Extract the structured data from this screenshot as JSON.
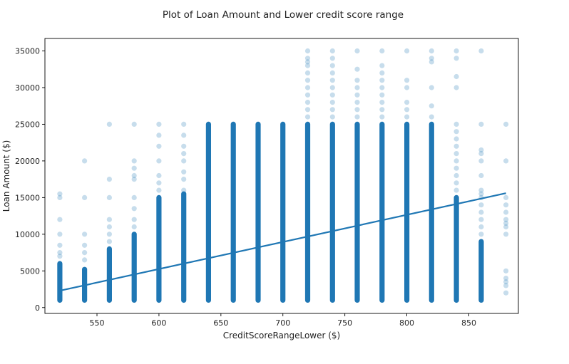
{
  "chart_data": {
    "type": "scatter",
    "title": "Plot of Loan Amount and Lower credit score range",
    "xlabel": "CreditScoreRangeLower ($)",
    "ylabel": "Loan Amount ($)",
    "xlim": [
      508,
      890
    ],
    "ylim": [
      -800,
      36700
    ],
    "xticks": [
      550,
      600,
      650,
      700,
      750,
      800,
      850
    ],
    "yticks": [
      0,
      5000,
      10000,
      15000,
      20000,
      25000,
      30000,
      35000
    ],
    "grid": false,
    "point_color": "#1f77b4",
    "point_alpha": 0.25,
    "regression_line": {
      "x": [
        520,
        880
      ],
      "y": [
        2300,
        15600
      ],
      "color": "#1f77b4"
    },
    "columns": [
      {
        "x": 520,
        "dense": [
          1000,
          6000
        ],
        "scatter": [
          7000,
          7500,
          8500,
          10000,
          12000,
          15000,
          15500
        ]
      },
      {
        "x": 540,
        "dense": [
          1000,
          5200
        ],
        "scatter": [
          6500,
          7500,
          8500,
          10000,
          15000,
          20000
        ]
      },
      {
        "x": 560,
        "dense": [
          1000,
          8000
        ],
        "scatter": [
          9000,
          10000,
          11000,
          12000,
          15000,
          17500,
          25000
        ]
      },
      {
        "x": 580,
        "dense": [
          1000,
          10000
        ],
        "scatter": [
          11000,
          12000,
          13500,
          15000,
          17500,
          18000,
          19000,
          20000,
          25000
        ]
      },
      {
        "x": 600,
        "dense": [
          1000,
          15000
        ],
        "scatter": [
          16000,
          17000,
          18000,
          20000,
          22000,
          23500,
          25000
        ]
      },
      {
        "x": 620,
        "dense": [
          1000,
          15500
        ],
        "scatter": [
          16000,
          17500,
          18500,
          20000,
          21000,
          22000,
          23500,
          25000
        ]
      },
      {
        "x": 640,
        "dense": [
          1000,
          25000
        ],
        "scatter": []
      },
      {
        "x": 660,
        "dense": [
          1000,
          25000
        ],
        "scatter": []
      },
      {
        "x": 680,
        "dense": [
          1000,
          25000
        ],
        "scatter": []
      },
      {
        "x": 700,
        "dense": [
          1000,
          25000
        ],
        "scatter": []
      },
      {
        "x": 720,
        "dense": [
          1000,
          25000
        ],
        "scatter": [
          26000,
          27000,
          28000,
          29000,
          30000,
          31000,
          32000,
          33000,
          33500,
          34000,
          35000
        ]
      },
      {
        "x": 740,
        "dense": [
          1000,
          25000
        ],
        "scatter": [
          26000,
          27000,
          28000,
          29000,
          30000,
          31000,
          32000,
          33000,
          34000,
          35000
        ]
      },
      {
        "x": 760,
        "dense": [
          1000,
          25000
        ],
        "scatter": [
          26000,
          27000,
          28000,
          29000,
          30000,
          31000,
          32500,
          35000
        ]
      },
      {
        "x": 780,
        "dense": [
          1000,
          25000
        ],
        "scatter": [
          26000,
          27000,
          28000,
          29000,
          30000,
          31000,
          32000,
          33000,
          35000
        ]
      },
      {
        "x": 800,
        "dense": [
          1000,
          25000
        ],
        "scatter": [
          26000,
          27000,
          28000,
          30000,
          31000,
          35000
        ]
      },
      {
        "x": 820,
        "dense": [
          1000,
          25000
        ],
        "scatter": [
          26000,
          27500,
          30000,
          33500,
          34000,
          35000
        ]
      },
      {
        "x": 840,
        "dense": [
          1000,
          15000
        ],
        "scatter": [
          16000,
          17000,
          18000,
          19000,
          20000,
          21000,
          22000,
          23000,
          24000,
          25000,
          30000,
          31500,
          34000,
          35000
        ]
      },
      {
        "x": 860,
        "dense": [
          1000,
          9000
        ],
        "scatter": [
          10000,
          11000,
          12000,
          13000,
          14000,
          15000,
          15500,
          16000,
          18000,
          20000,
          21000,
          21500,
          25000,
          35000
        ]
      },
      {
        "x": 880,
        "dense": [],
        "scatter": [
          2000,
          3000,
          3500,
          4000,
          5000,
          10000,
          11000,
          11500,
          12000,
          13000,
          14000,
          15000,
          20000,
          25000
        ]
      }
    ]
  }
}
